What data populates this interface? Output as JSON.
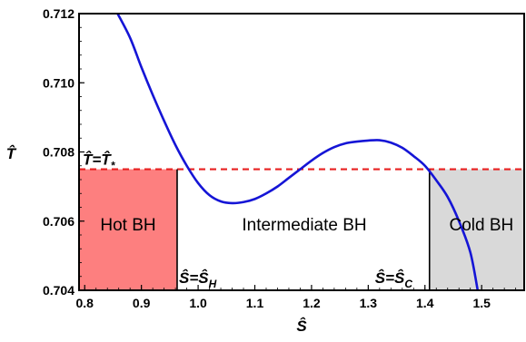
{
  "chart_data": {
    "type": "line",
    "xlabel": "Ŝ",
    "ylabel": "T̂",
    "xlim": [
      0.79,
      1.575
    ],
    "ylim": [
      0.704,
      0.712
    ],
    "x_ticks": [
      {
        "value": 0.8,
        "label": "0.8"
      },
      {
        "value": 0.9,
        "label": "0.9"
      },
      {
        "value": 1.0,
        "label": "1.0"
      },
      {
        "value": 1.1,
        "label": "1.1"
      },
      {
        "value": 1.2,
        "label": "1.2"
      },
      {
        "value": 1.3,
        "label": "1.3"
      },
      {
        "value": 1.4,
        "label": "1.4"
      },
      {
        "value": 1.5,
        "label": "1.5"
      }
    ],
    "y_ticks": [
      {
        "value": 0.704,
        "label": "0.704"
      },
      {
        "value": 0.706,
        "label": "0.706"
      },
      {
        "value": 0.708,
        "label": "0.708"
      },
      {
        "value": 0.71,
        "label": "0.710"
      },
      {
        "value": 0.712,
        "label": "0.712"
      }
    ],
    "curve": {
      "color": "#1515d6",
      "points": [
        [
          0.858,
          0.712
        ],
        [
          0.88,
          0.7113
        ],
        [
          0.9,
          0.71045
        ],
        [
          0.92,
          0.70965
        ],
        [
          0.94,
          0.7089
        ],
        [
          0.96,
          0.7082
        ],
        [
          0.98,
          0.7076
        ],
        [
          1.0,
          0.7071
        ],
        [
          1.02,
          0.70675
        ],
        [
          1.04,
          0.70657
        ],
        [
          1.06,
          0.70652
        ],
        [
          1.08,
          0.70655
        ],
        [
          1.1,
          0.70664
        ],
        [
          1.12,
          0.7068
        ],
        [
          1.14,
          0.707
        ],
        [
          1.16,
          0.70725
        ],
        [
          1.18,
          0.7075
        ],
        [
          1.2,
          0.70775
        ],
        [
          1.22,
          0.70797
        ],
        [
          1.24,
          0.70814
        ],
        [
          1.26,
          0.70825
        ],
        [
          1.28,
          0.7083
        ],
        [
          1.3,
          0.70833
        ],
        [
          1.32,
          0.70834
        ],
        [
          1.34,
          0.70827
        ],
        [
          1.36,
          0.70812
        ],
        [
          1.38,
          0.70788
        ],
        [
          1.4,
          0.7076
        ],
        [
          1.42,
          0.70718
        ],
        [
          1.44,
          0.7067
        ],
        [
          1.46,
          0.706
        ],
        [
          1.48,
          0.7051
        ],
        [
          1.493,
          0.704
        ]
      ]
    },
    "isotherm": {
      "value": 0.7075,
      "color": "#e82020",
      "label_T": "T̂=T̂",
      "label_sub": "*"
    },
    "boundaries": {
      "s_h": 0.963,
      "s_c": 1.408,
      "label_h": "Ŝ=Ŝ",
      "label_h_sub": "H",
      "label_c": "Ŝ=Ŝ",
      "label_c_sub": "C"
    },
    "regions": [
      {
        "name": "hot",
        "label": "Hot BH",
        "color": "#fd7f7f"
      },
      {
        "name": "intermediate",
        "label": "Intermediate BH",
        "color": "#ffffff"
      },
      {
        "name": "cold",
        "label": "Cold BH",
        "color": "#d9d9d9"
      }
    ]
  }
}
